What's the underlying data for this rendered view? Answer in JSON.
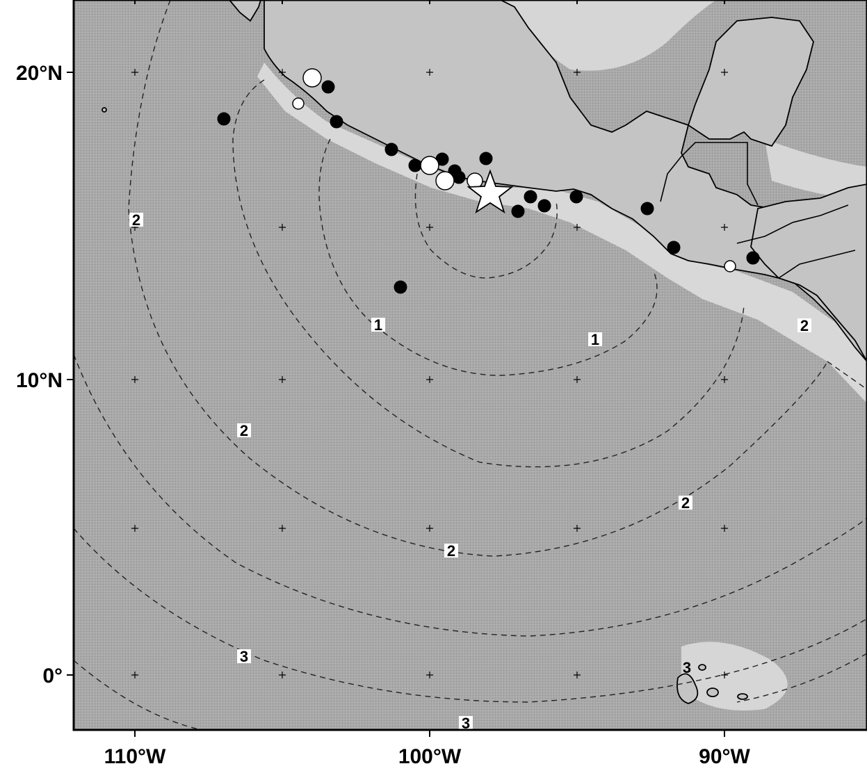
{
  "map": {
    "axis_labels": {
      "lat_20": "20°N",
      "lat_10": "10°N",
      "lat_0": "0°",
      "lon_110": "110°W",
      "lon_100": "100°W",
      "lon_90": "90°W"
    },
    "contour_labels": [
      "1",
      "1",
      "2",
      "2",
      "2",
      "2",
      "2",
      "3",
      "3",
      "3"
    ],
    "colors": {
      "ocean": "#a9a9a9",
      "land": "#c4c4c4",
      "shelf": "#dedede",
      "open_marker": "#ffffff",
      "filled_marker": "#000000"
    },
    "markers": {
      "epicenter": "star",
      "filled": "filled-circle",
      "open": "open-circle"
    }
  }
}
